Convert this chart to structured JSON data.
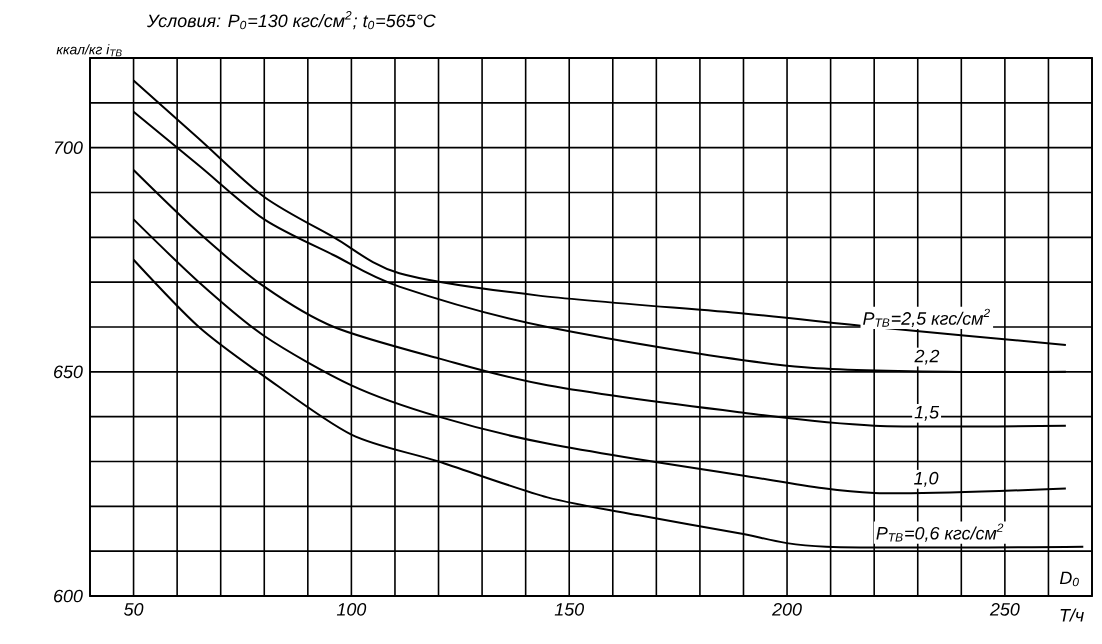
{
  "chart_data": {
    "type": "line",
    "title": "Условия: P$_{0}$=130 кгс/см$^{2}$; t$_{0}$=565°C",
    "xlabel": "D$_{0}$",
    "ylabel": "ккал/кг i$_{ТВ}$",
    "annotations": [
      "Т/ч"
    ],
    "xlim": [
      40,
      270
    ],
    "ylim": [
      600,
      720
    ],
    "xticks": [
      {
        "value": 40,
        "label": null
      },
      50,
      {
        "value": 60,
        "label": null
      },
      {
        "value": 70,
        "label": null
      },
      {
        "value": 80,
        "label": null
      },
      {
        "value": 90,
        "label": null
      },
      100,
      {
        "value": 110,
        "label": null
      },
      {
        "value": 120,
        "label": null
      },
      {
        "value": 130,
        "label": null
      },
      {
        "value": 140,
        "label": null
      },
      150,
      {
        "value": 160,
        "label": null
      },
      {
        "value": 170,
        "label": null
      },
      {
        "value": 180,
        "label": null
      },
      {
        "value": 190,
        "label": null
      },
      200,
      {
        "value": 210,
        "label": null
      },
      {
        "value": 220,
        "label": null
      },
      {
        "value": 230,
        "label": null
      },
      {
        "value": 240,
        "label": null
      },
      250,
      {
        "value": 260,
        "label": null
      },
      {
        "value": 270,
        "label": null
      }
    ],
    "yticks": [
      600,
      {
        "value": 610,
        "label": null
      },
      {
        "value": 620,
        "label": null
      },
      {
        "value": 630,
        "label": null
      },
      {
        "value": 640,
        "label": null
      },
      650,
      {
        "value": 660,
        "label": null
      },
      {
        "value": 670,
        "label": null
      },
      {
        "value": 680,
        "label": null
      },
      {
        "value": 690,
        "label": null
      },
      700,
      {
        "value": 710,
        "label": null
      },
      {
        "value": 720,
        "label": null
      }
    ],
    "grid": true,
    "marker": "none",
    "line_style": "solid",
    "series": [
      {
        "name": "P$_{ТВ}$=2,5 кгс/см$^{2}$",
        "color": "#000000",
        "x": [
          50,
          65,
          80,
          96,
          111,
          143,
          190,
          220,
          264
        ],
        "values": [
          715,
          702,
          689,
          680,
          672,
          667,
          663,
          660,
          656
        ]
      },
      {
        "name": "2,2",
        "color": "#000000",
        "x": [
          50,
          65,
          80,
          96,
          111,
          145,
          204,
          264
        ],
        "values": [
          708,
          696,
          684,
          676,
          669,
          660,
          651,
          650
        ]
      },
      {
        "name": "1,5",
        "color": "#000000",
        "x": [
          50,
          65,
          80,
          96,
          120,
          145,
          189,
          220,
          264
        ],
        "values": [
          695,
          681,
          669,
          660,
          653,
          647,
          641,
          638,
          638
        ]
      },
      {
        "name": "1,0",
        "color": "#000000",
        "x": [
          50,
          65,
          80,
          100,
          120,
          145,
          189,
          220,
          264
        ],
        "values": [
          684,
          670,
          658,
          647,
          640,
          634,
          627,
          623,
          624
        ]
      },
      {
        "name": "P$_{ТВ}$=0,6 кгс/см$^{2}$",
        "color": "#000000",
        "x": [
          50,
          65,
          80,
          100,
          120,
          145,
          166,
          189,
          209,
          268
        ],
        "values": [
          675,
          660,
          649,
          636,
          630,
          622,
          618,
          614,
          611,
          611
        ]
      }
    ]
  }
}
